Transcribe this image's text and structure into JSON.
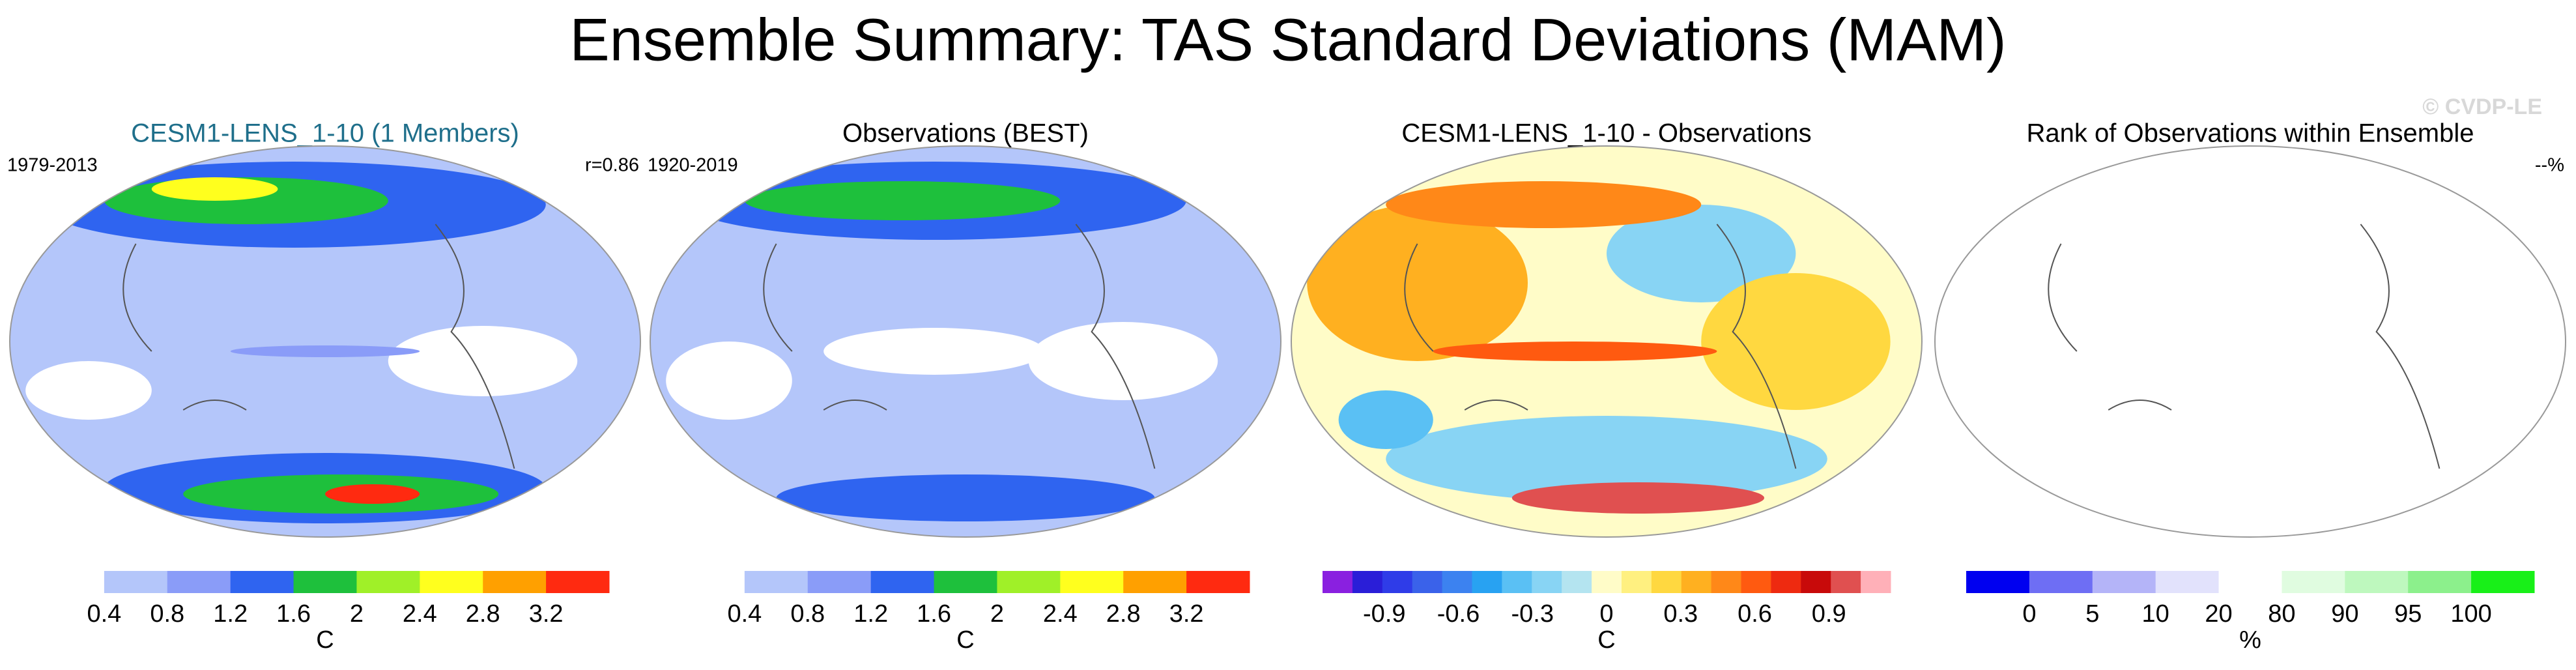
{
  "title": "Ensemble Summary: TAS Standard Deviations (MAM)",
  "watermark": "© CVDP-LE",
  "panels": [
    {
      "title": "CESM1-LENS_1-10 (1 Members)",
      "title_color": "#1f6f8b",
      "left_label": "1979-2013",
      "right_label": "r=0.86",
      "colorbar": {
        "colors": [
          "#ffffff",
          "#b4c6fa",
          "#8a9cf8",
          "#2f64f0",
          "#1ec03c",
          "#a0f028",
          "#ffff1e",
          "#ffa000",
          "#ff2a10"
        ],
        "ticks": [
          0.4,
          0.8,
          1.2,
          1.6,
          2,
          2.4,
          2.8,
          3.2
        ],
        "unit": "C"
      }
    },
    {
      "title": "Observations (BEST)",
      "left_label": "1920-2019",
      "colorbar": {
        "colors": [
          "#ffffff",
          "#b4c6fa",
          "#8a9cf8",
          "#2f64f0",
          "#1ec03c",
          "#a0f028",
          "#ffff1e",
          "#ffa000",
          "#ff2a10"
        ],
        "ticks": [
          0.4,
          0.8,
          1.2,
          1.6,
          2,
          2.4,
          2.8,
          3.2
        ],
        "unit": "C"
      }
    },
    {
      "title": "CESM1-LENS_1-10 - Observations",
      "colorbar": {
        "colors": [
          "#8a20e0",
          "#2a1ed8",
          "#2f3ce8",
          "#3a62ea",
          "#3c82f0",
          "#28a2f2",
          "#5ac0f4",
          "#88d4f4",
          "#b4e4f0",
          "#fffcc8",
          "#fff080",
          "#ffd840",
          "#ffb020",
          "#ff8818",
          "#ff5a10",
          "#ee2a10",
          "#c80a0a",
          "#e05050",
          "#ffb0b8"
        ],
        "lim": [
          -1.15,
          1.15
        ],
        "ticks": [
          -0.9,
          -0.6,
          -0.3,
          0,
          0.3,
          0.6,
          0.9
        ],
        "unit": "C"
      }
    },
    {
      "title": "Rank of Observations within Ensemble",
      "right_label": "--%",
      "colorbar": {
        "colors": [
          "#0000f0",
          "#6e6ef4",
          "#b4b4f8",
          "#e2e2fc",
          "#ffffff",
          "#e0fce0",
          "#bef8be",
          "#8cf08c",
          "#18f018"
        ],
        "ticks": [
          0,
          5,
          10,
          20,
          80,
          90,
          95,
          100
        ],
        "unit": "%"
      }
    }
  ]
}
